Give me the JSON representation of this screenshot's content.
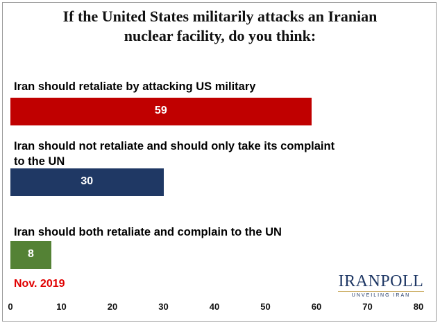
{
  "title_lines": [
    "If the United States militarily attacks an Iranian",
    "nuclear facility, do you think:"
  ],
  "note": "Nov. 2019",
  "logo": {
    "wordmark": "IRANPOLL",
    "tagline": "UNVEILING IRAN"
  },
  "chart_data": {
    "type": "bar",
    "orientation": "horizontal",
    "categories": [
      [
        "Iran should retaliate by attacking US military"
      ],
      [
        "Iran should not retaliate and should only take its complaint",
        " to the UN"
      ],
      [
        "Iran should both retaliate and complain to the UN"
      ]
    ],
    "values": [
      59,
      30,
      8
    ],
    "colors": [
      "#c00000",
      "#1f3864",
      "#548235"
    ],
    "xlim": [
      0,
      80
    ],
    "xticks": [
      "0",
      "10",
      "20",
      "30",
      "40",
      "50",
      "60",
      "70",
      "80"
    ],
    "grid": false,
    "legend": "none"
  }
}
